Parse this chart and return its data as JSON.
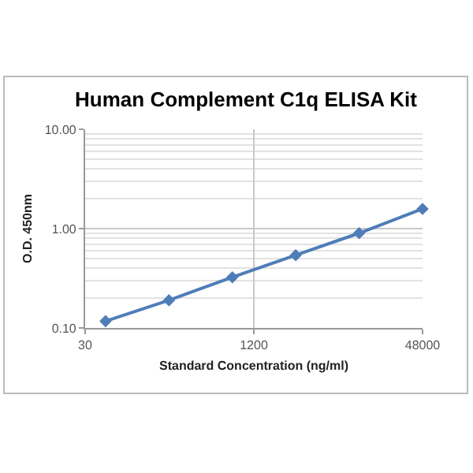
{
  "chart_data": {
    "type": "line",
    "title": "Human Complement C1q ELISA Kit",
    "xlabel": "Standard Concentration (ng/ml)",
    "ylabel": "O.D. 450nm",
    "x": [
      46.875,
      187.5,
      750,
      3000,
      12000,
      48000
    ],
    "series": [
      {
        "color": "#4f7db8",
        "values": [
          0.117,
          0.19,
          0.324,
          0.54,
          0.9,
          1.58
        ]
      }
    ],
    "log": "xy",
    "xlim": [
      30,
      48000
    ],
    "xticks": [
      30,
      1200,
      48000
    ],
    "ylim": [
      0.1,
      10
    ],
    "yticks": [
      {
        "value": 0.1,
        "label": "0.10"
      },
      {
        "value": 1,
        "label": "1.00"
      },
      {
        "value": 10,
        "label": "10.00"
      }
    ],
    "grid": true,
    "marker": "diamond",
    "line_style": "solid"
  }
}
